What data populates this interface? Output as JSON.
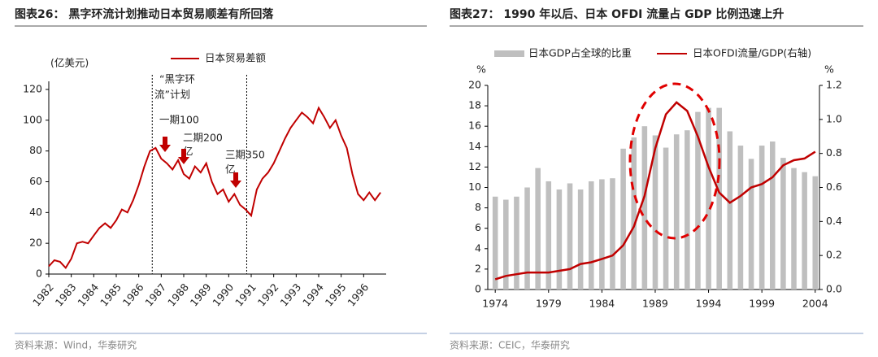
{
  "chart_data": [
    {
      "type": "line",
      "title": "图表26： 黑字环流计划推动日本贸易顺差有所回落",
      "y_label": "(亿美元)",
      "xlim": [
        1982,
        1997
      ],
      "xticks": [
        1982,
        1983,
        1984,
        1985,
        1986,
        1987,
        1988,
        1989,
        1990,
        1991,
        1992,
        1993,
        1994,
        1995,
        1996
      ],
      "ylim": [
        0,
        120
      ],
      "yticks": [
        0,
        20,
        40,
        60,
        80,
        100,
        120
      ],
      "vlines": [
        1986.6,
        1990.8
      ],
      "annotations": [
        "“黑字环",
        "流”计划",
        "一期100",
        "二期200",
        "亿",
        "三期350",
        "亿"
      ],
      "series": [
        {
          "name": "日本贸易差额",
          "color": "#c00000",
          "x": [
            1982,
            1982.25,
            1982.5,
            1982.75,
            1983,
            1983.25,
            1983.5,
            1983.75,
            1984,
            1984.25,
            1984.5,
            1984.75,
            1985,
            1985.25,
            1985.5,
            1985.75,
            1986,
            1986.25,
            1986.5,
            1986.75,
            1987,
            1987.25,
            1987.5,
            1987.75,
            1988,
            1988.25,
            1988.5,
            1988.75,
            1989,
            1989.25,
            1989.5,
            1989.75,
            1990,
            1990.25,
            1990.5,
            1990.75,
            1991,
            1991.25,
            1991.5,
            1991.75,
            1992,
            1992.25,
            1992.5,
            1992.75,
            1993,
            1993.25,
            1993.5,
            1993.75,
            1994,
            1994.25,
            1994.5,
            1994.75,
            1995,
            1995.25,
            1995.5,
            1995.75,
            1996,
            1996.25,
            1996.5,
            1996.75
          ],
          "values": [
            5,
            9,
            8,
            4,
            10,
            20,
            21,
            20,
            25,
            30,
            33,
            30,
            35,
            42,
            40,
            48,
            58,
            70,
            80,
            82,
            75,
            72,
            68,
            74,
            65,
            62,
            70,
            66,
            72,
            60,
            52,
            55,
            47,
            52,
            45,
            42,
            38,
            55,
            62,
            66,
            72,
            80,
            88,
            95,
            100,
            105,
            102,
            98,
            108,
            102,
            95,
            100,
            90,
            82,
            65,
            52,
            48,
            53,
            48,
            53
          ]
        }
      ],
      "source": "资料来源：Wind，华泰研究"
    },
    {
      "type": "bar",
      "title": "图表27： 1990 年以后、日本 OFDI 流量占 GDP 比例迅速上升",
      "y_label": "%",
      "y2_label": "%",
      "xlim": [
        1973.3,
        2004.4
      ],
      "xticks": [
        1974,
        1979,
        1984,
        1989,
        1994,
        1999,
        2004
      ],
      "ylim": [
        0,
        20
      ],
      "yticks": [
        0,
        2,
        4,
        6,
        8,
        10,
        12,
        14,
        16,
        18,
        20
      ],
      "y2lim": [
        0,
        1.2
      ],
      "y2ticks": [
        {
          "value": 0,
          "label": "0.0"
        },
        0.2,
        0.4,
        0.6,
        0.8,
        {
          "value": 1,
          "label": "1.0"
        },
        1.2
      ],
      "x": [
        1974,
        1975,
        1976,
        1977,
        1978,
        1979,
        1980,
        1981,
        1982,
        1983,
        1984,
        1985,
        1986,
        1987,
        1988,
        1989,
        1990,
        1991,
        1992,
        1993,
        1994,
        1995,
        1996,
        1997,
        1998,
        1999,
        2000,
        2001,
        2002,
        2003,
        2004
      ],
      "series": [
        {
          "name": "日本GDP占全球的比重",
          "color": "#bfbfbf",
          "type": "bar",
          "values": [
            9.1,
            8.8,
            9.1,
            10.0,
            11.9,
            10.6,
            9.8,
            10.4,
            9.8,
            10.6,
            10.8,
            10.9,
            13.8,
            14.9,
            16.0,
            15.1,
            13.9,
            15.2,
            15.6,
            17.4,
            17.8,
            17.8,
            15.5,
            14.1,
            12.8,
            14.1,
            14.5,
            12.9,
            11.9,
            11.5,
            11.1
          ]
        },
        {
          "name": "日本OFDI流量/GDP(右轴)",
          "color": "#c00000",
          "type": "line",
          "axis": "y2",
          "values": [
            0.06,
            0.08,
            0.09,
            0.1,
            0.1,
            0.1,
            0.11,
            0.12,
            0.15,
            0.16,
            0.18,
            0.2,
            0.26,
            0.37,
            0.55,
            0.83,
            1.03,
            1.1,
            1.05,
            0.9,
            0.72,
            0.57,
            0.51,
            0.55,
            0.6,
            0.62,
            0.66,
            0.73,
            0.76,
            0.77,
            0.81
          ]
        }
      ],
      "source": "资料来源：CEIC，华泰研究"
    }
  ]
}
